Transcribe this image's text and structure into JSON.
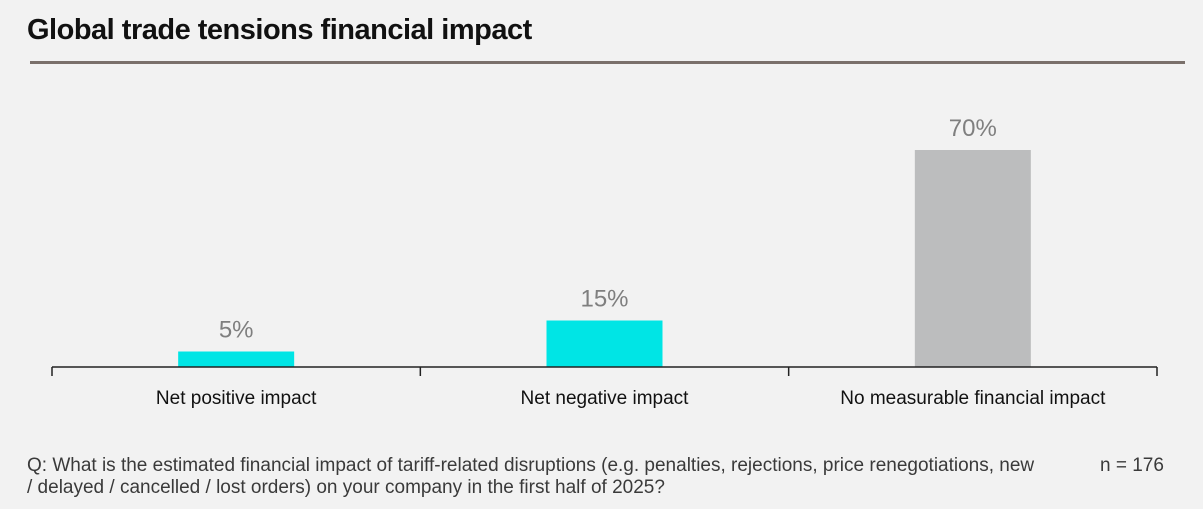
{
  "title": "Global trade tensions financial impact",
  "chart_data": {
    "type": "bar",
    "title": "Global trade tensions financial impact",
    "categories": [
      "Net positive impact",
      "Net negative impact",
      "No measurable financial impact"
    ],
    "values": [
      5,
      15,
      70
    ],
    "value_labels": [
      "5%",
      "15%",
      "70%"
    ],
    "bar_colors": [
      "#00e5e5",
      "#00e5e5",
      "#bcbdbe"
    ],
    "xlabel": "",
    "ylabel": "",
    "ylim": [
      0,
      100
    ],
    "grid": false
  },
  "colors": {
    "accent": "#00e5e5",
    "neutral": "#bcbdbe",
    "rule": "#7a706b"
  },
  "footnote": {
    "question": "Q: What is the estimated financial impact of tariff-related disruptions (e.g. penalties, rejections, price renegotiations, new / delayed / cancelled / lost orders) on your company in the first half of 2025?",
    "sample_size": "n = 176"
  }
}
